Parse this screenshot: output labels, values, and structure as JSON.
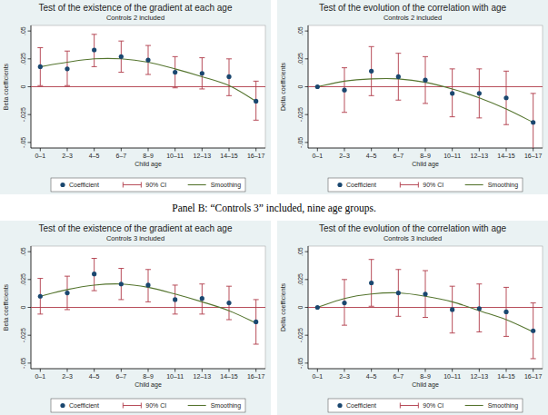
{
  "chart_data": [
    {
      "type": "scatter",
      "title": "Test of the existence of the gradient at each age",
      "subtitle": "Controls 2 included",
      "x_label": "Child age",
      "y_label": "Beta coefficients",
      "categories": [
        "0–1",
        "2–3",
        "4–5",
        "6–7",
        "8–9",
        "10–11",
        "12–13",
        "14–15",
        "16–17"
      ],
      "ylim": [
        -0.055,
        0.055
      ],
      "yticks": [
        {
          "value": -0.05,
          "label": "-.05"
        },
        {
          "value": -0.025,
          "label": "-.025"
        },
        0,
        {
          "value": 0.025,
          "label": ".025"
        },
        {
          "value": 0.05,
          "label": ".05"
        }
      ],
      "reference_line": 0,
      "grid": false,
      "legend": "bottom",
      "series": [
        {
          "name": "Coefficient",
          "type": "scatter",
          "marker": "circle",
          "color": "#1a476f",
          "values": [
            0.018,
            0.016,
            0.033,
            0.027,
            0.024,
            0.013,
            0.012,
            0.009,
            -0.013
          ]
        },
        {
          "name": "90% CI",
          "type": "errorbar",
          "color": "#b03a48",
          "lower": [
            0.001,
            0.001,
            0.018,
            0.013,
            0.011,
            -0.001,
            -0.002,
            -0.008,
            -0.03
          ],
          "upper": [
            0.035,
            0.032,
            0.047,
            0.041,
            0.037,
            0.027,
            0.026,
            0.025,
            0.005
          ]
        },
        {
          "name": "Smoothing",
          "type": "line",
          "color": "#55752f",
          "values": [
            0.018,
            0.022,
            0.025,
            0.025,
            0.022,
            0.016,
            0.009,
            0.001,
            -0.013
          ]
        }
      ]
    },
    {
      "type": "scatter",
      "title": "Test of the evolution of the correlation with age",
      "subtitle": "Controls 2 included",
      "x_label": "Child age",
      "y_label": "Delta coefficients",
      "categories": [
        "0–1",
        "2–3",
        "4–5",
        "6–7",
        "8–9",
        "10–11",
        "12–13",
        "14–15",
        "16–17"
      ],
      "ylim": [
        -0.055,
        0.055
      ],
      "yticks": [
        {
          "value": -0.05,
          "label": "-.05"
        },
        {
          "value": -0.025,
          "label": "-.025"
        },
        0,
        {
          "value": 0.025,
          "label": ".025"
        },
        {
          "value": 0.05,
          "label": ".05"
        }
      ],
      "reference_line": 0,
      "grid": false,
      "legend": "bottom",
      "series": [
        {
          "name": "Coefficient",
          "type": "scatter",
          "marker": "circle",
          "color": "#1a476f",
          "values": [
            0,
            -0.003,
            0.014,
            0.009,
            0.006,
            -0.006,
            -0.006,
            -0.01,
            -0.032
          ]
        },
        {
          "name": "90% CI",
          "type": "errorbar",
          "color": "#b03a48",
          "lower": [
            null,
            -0.023,
            -0.008,
            -0.012,
            -0.015,
            -0.027,
            -0.028,
            -0.034,
            -0.056
          ],
          "upper": [
            null,
            0.017,
            0.036,
            0.03,
            0.027,
            0.016,
            0.016,
            0.014,
            -0.006
          ]
        },
        {
          "name": "Smoothing",
          "type": "line",
          "color": "#55752f",
          "values": [
            0,
            0.005,
            0.007,
            0.007,
            0.004,
            -0.002,
            -0.01,
            -0.02,
            -0.032
          ]
        }
      ]
    },
    {
      "type": "scatter",
      "title": "Test of the existence of the gradient at each age",
      "subtitle": "Controls 3 included",
      "x_label": "Child age",
      "y_label": "Beta coefficients",
      "categories": [
        "0–1",
        "2–3",
        "4–5",
        "6–7",
        "8–9",
        "10–11",
        "12–13",
        "14–15",
        "16–17"
      ],
      "ylim": [
        -0.055,
        0.055
      ],
      "yticks": [
        {
          "value": -0.05,
          "label": "-.05"
        },
        {
          "value": -0.025,
          "label": "-.025"
        },
        0,
        {
          "value": 0.025,
          "label": ".025"
        },
        {
          "value": 0.05,
          "label": ".05"
        }
      ],
      "reference_line": 0,
      "grid": false,
      "legend": "bottom",
      "series": [
        {
          "name": "Coefficient",
          "type": "scatter",
          "marker": "circle",
          "color": "#1a476f",
          "values": [
            0.01,
            0.013,
            0.03,
            0.021,
            0.02,
            0.007,
            0.008,
            0.004,
            -0.013
          ]
        },
        {
          "name": "90% CI",
          "type": "errorbar",
          "color": "#b03a48",
          "lower": [
            -0.006,
            -0.002,
            0.015,
            0.007,
            0.005,
            -0.006,
            -0.006,
            -0.011,
            -0.033
          ],
          "upper": [
            0.026,
            0.028,
            0.044,
            0.035,
            0.034,
            0.02,
            0.021,
            0.019,
            0.007
          ]
        },
        {
          "name": "Smoothing",
          "type": "line",
          "color": "#55752f",
          "values": [
            0.01,
            0.016,
            0.02,
            0.021,
            0.018,
            0.012,
            0.005,
            -0.003,
            -0.014
          ]
        }
      ]
    },
    {
      "type": "scatter",
      "title": "Test of the evolution of the correlation with age",
      "subtitle": "Controls 3 included",
      "x_label": "Child age",
      "y_label": "Delta coefficients",
      "categories": [
        "0–1",
        "2–3",
        "4–5",
        "6–7",
        "8–9",
        "10–11",
        "12–13",
        "14–15",
        "16–17"
      ],
      "ylim": [
        -0.055,
        0.055
      ],
      "yticks": [
        {
          "value": -0.05,
          "label": "-.05"
        },
        {
          "value": -0.025,
          "label": "-.025"
        },
        0,
        {
          "value": 0.025,
          "label": ".025"
        },
        {
          "value": 0.05,
          "label": ".05"
        }
      ],
      "reference_line": 0,
      "grid": false,
      "legend": "bottom",
      "series": [
        {
          "name": "Coefficient",
          "type": "scatter",
          "marker": "circle",
          "color": "#1a476f",
          "values": [
            0,
            0.004,
            0.022,
            0.013,
            0.012,
            -0.002,
            -0.001,
            -0.004,
            -0.021
          ]
        },
        {
          "name": "90% CI",
          "type": "errorbar",
          "color": "#b03a48",
          "lower": [
            null,
            -0.016,
            0.001,
            -0.008,
            -0.009,
            -0.023,
            -0.022,
            -0.026,
            -0.046
          ],
          "upper": [
            null,
            0.025,
            0.043,
            0.034,
            0.033,
            0.019,
            0.021,
            0.018,
            0.004
          ]
        },
        {
          "name": "Smoothing",
          "type": "line",
          "color": "#55752f",
          "values": [
            0,
            0.008,
            0.012,
            0.013,
            0.01,
            0.005,
            -0.003,
            -0.011,
            -0.022
          ]
        }
      ]
    }
  ],
  "caption": "Panel B: “Controls 3” included, nine age groups."
}
